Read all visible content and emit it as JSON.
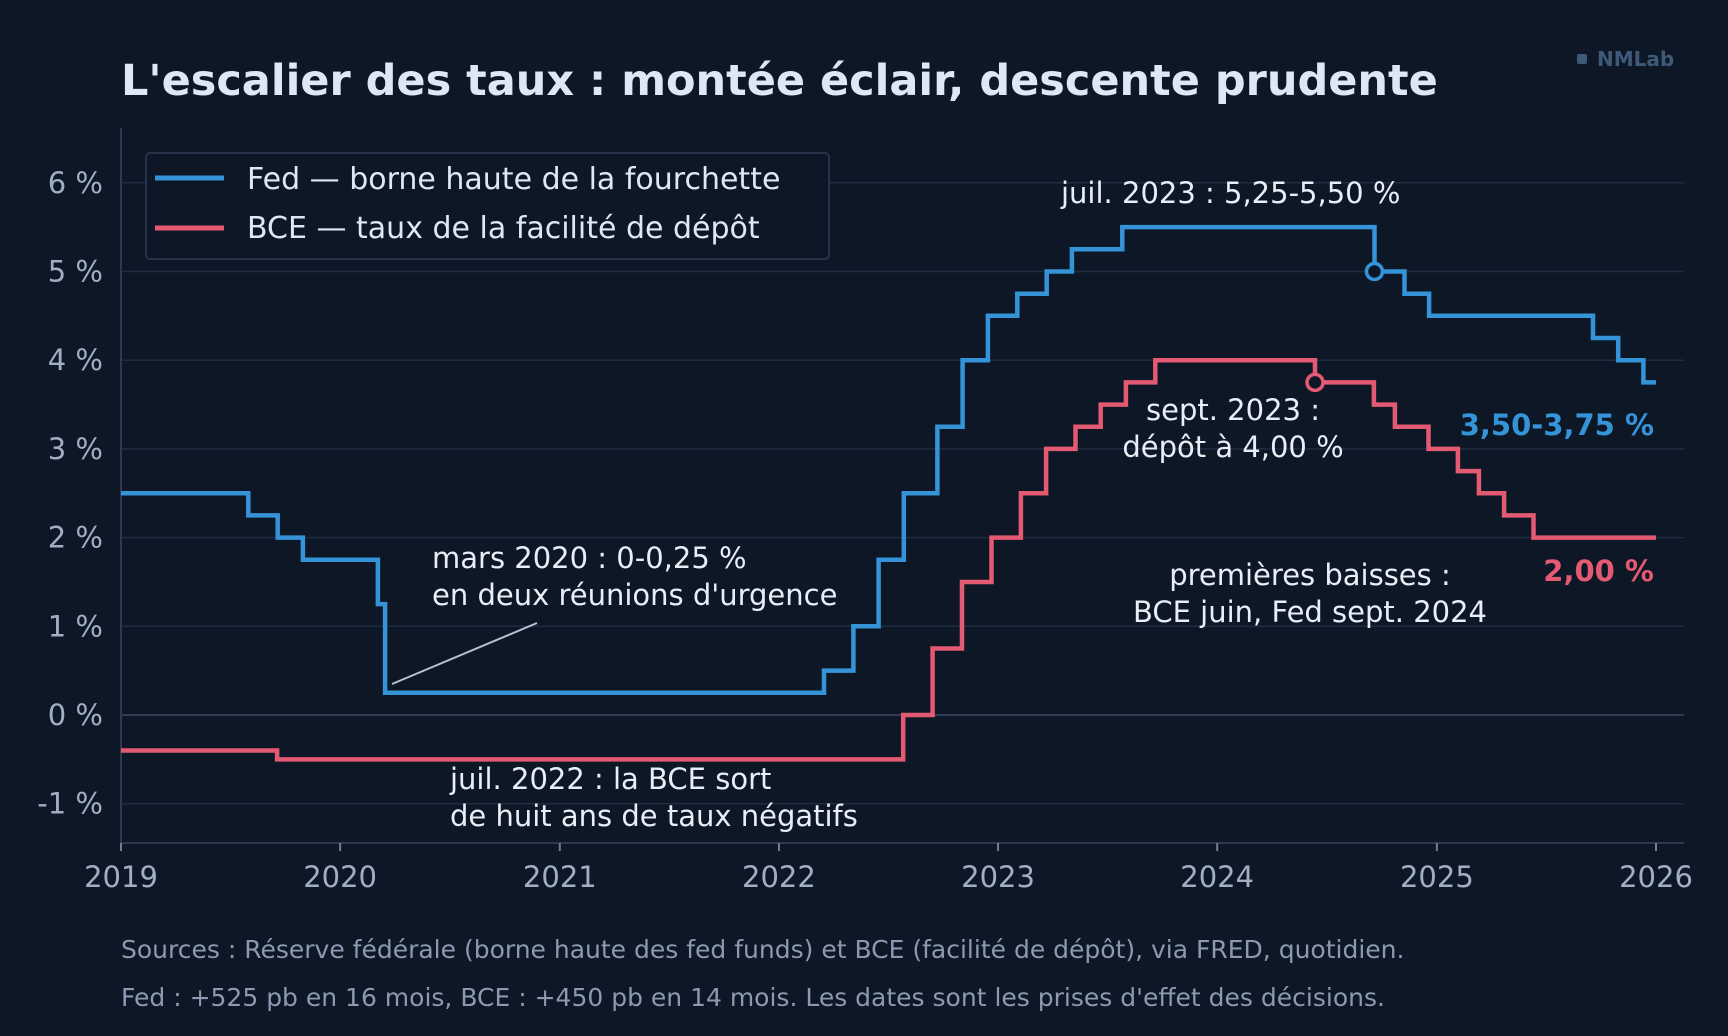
{
  "brand": "NMLab",
  "colors": {
    "background": "#0d1726",
    "grid": "#1f2d42",
    "fed": "#3593d8",
    "ecb": "#e35a72",
    "text": "#dce8f6",
    "tick": "#9fb0c4"
  },
  "chart_data": {
    "type": "line",
    "step": "post",
    "title": "L'escalier des taux : montée éclair, descente prudente",
    "xlabel": "",
    "ylabel": "",
    "x_ticks": [
      "2019",
      "2020",
      "2021",
      "2022",
      "2023",
      "2024",
      "2025",
      "2026"
    ],
    "y_ticks": [
      "-1 %",
      "0 %",
      "1 %",
      "2 %",
      "3 %",
      "4 %",
      "5 %",
      "6 %"
    ],
    "xlim": [
      "2019-01-01",
      "2026-02-15"
    ],
    "ylim": [
      -1.45,
      6.6
    ],
    "grid": true,
    "legend_position": "top-left",
    "series": [
      {
        "name": "Fed — borne haute de la fourchette",
        "color": "#3593d8",
        "points": [
          [
            "2019-01-01",
            2.5
          ],
          [
            "2019-08-01",
            2.25
          ],
          [
            "2019-09-19",
            2.0
          ],
          [
            "2019-10-31",
            1.75
          ],
          [
            "2020-03-04",
            1.25
          ],
          [
            "2020-03-16",
            0.25
          ],
          [
            "2022-03-17",
            0.5
          ],
          [
            "2022-05-05",
            1.0
          ],
          [
            "2022-06-16",
            1.75
          ],
          [
            "2022-07-28",
            2.5
          ],
          [
            "2022-09-22",
            3.25
          ],
          [
            "2022-11-03",
            4.0
          ],
          [
            "2022-12-15",
            4.5
          ],
          [
            "2023-02-02",
            4.75
          ],
          [
            "2023-03-23",
            5.0
          ],
          [
            "2023-05-04",
            5.25
          ],
          [
            "2023-07-27",
            5.5
          ],
          [
            "2024-09-19",
            5.0
          ],
          [
            "2024-11-08",
            4.75
          ],
          [
            "2024-12-19",
            4.5
          ],
          [
            "2025-09-18",
            4.25
          ],
          [
            "2025-10-30",
            4.0
          ],
          [
            "2025-12-11",
            3.75
          ],
          [
            "2026-01-01",
            3.75
          ]
        ]
      },
      {
        "name": "BCE — taux de la facilité de dépôt",
        "color": "#e35a72",
        "points": [
          [
            "2019-01-01",
            -0.4
          ],
          [
            "2019-09-18",
            -0.5
          ],
          [
            "2022-07-27",
            0.0
          ],
          [
            "2022-09-14",
            0.75
          ],
          [
            "2022-11-02",
            1.5
          ],
          [
            "2022-12-21",
            2.0
          ],
          [
            "2023-02-08",
            2.5
          ],
          [
            "2023-03-22",
            3.0
          ],
          [
            "2023-05-10",
            3.25
          ],
          [
            "2023-06-21",
            3.5
          ],
          [
            "2023-08-02",
            3.75
          ],
          [
            "2023-09-20",
            4.0
          ],
          [
            "2024-06-12",
            3.75
          ],
          [
            "2024-09-18",
            3.5
          ],
          [
            "2024-10-23",
            3.25
          ],
          [
            "2024-12-18",
            3.0
          ],
          [
            "2025-02-05",
            2.75
          ],
          [
            "2025-03-12",
            2.5
          ],
          [
            "2025-04-23",
            2.25
          ],
          [
            "2025-06-11",
            2.0
          ],
          [
            "2026-01-01",
            2.0
          ]
        ]
      }
    ],
    "markers": [
      {
        "series": "Fed",
        "x": "2024-09-19",
        "y": 5.0
      },
      {
        "series": "BCE",
        "x": "2024-06-12",
        "y": 3.75
      }
    ],
    "end_labels": [
      {
        "text": "3,50-3,75 %",
        "color": "#3593d8"
      },
      {
        "text": "2,00 %",
        "color": "#e35a72"
      }
    ],
    "annotations": {
      "fed_peak": "juil. 2023 : 5,25-5,50 %",
      "ecb_peak_1": "sept. 2023 :",
      "ecb_peak_2": "dépôt à 4,00 %",
      "covid_1": "mars 2020 : 0-0,25 %",
      "covid_2": "en deux réunions d'urgence",
      "ecb_exit_1": "juil. 2022 : la BCE sort",
      "ecb_exit_2": "de huit ans de taux négatifs",
      "cuts_1": "premières baisses :",
      "cuts_2": "BCE juin, Fed sept. 2024"
    }
  },
  "sources": {
    "line1": "Sources : Réserve fédérale (borne haute des fed funds) et BCE (facilité de dépôt), via FRED, quotidien.",
    "line2": "Fed : +525 pb en 16 mois, BCE : +450 pb en 14 mois. Les dates sont les prises d'effet des décisions."
  }
}
